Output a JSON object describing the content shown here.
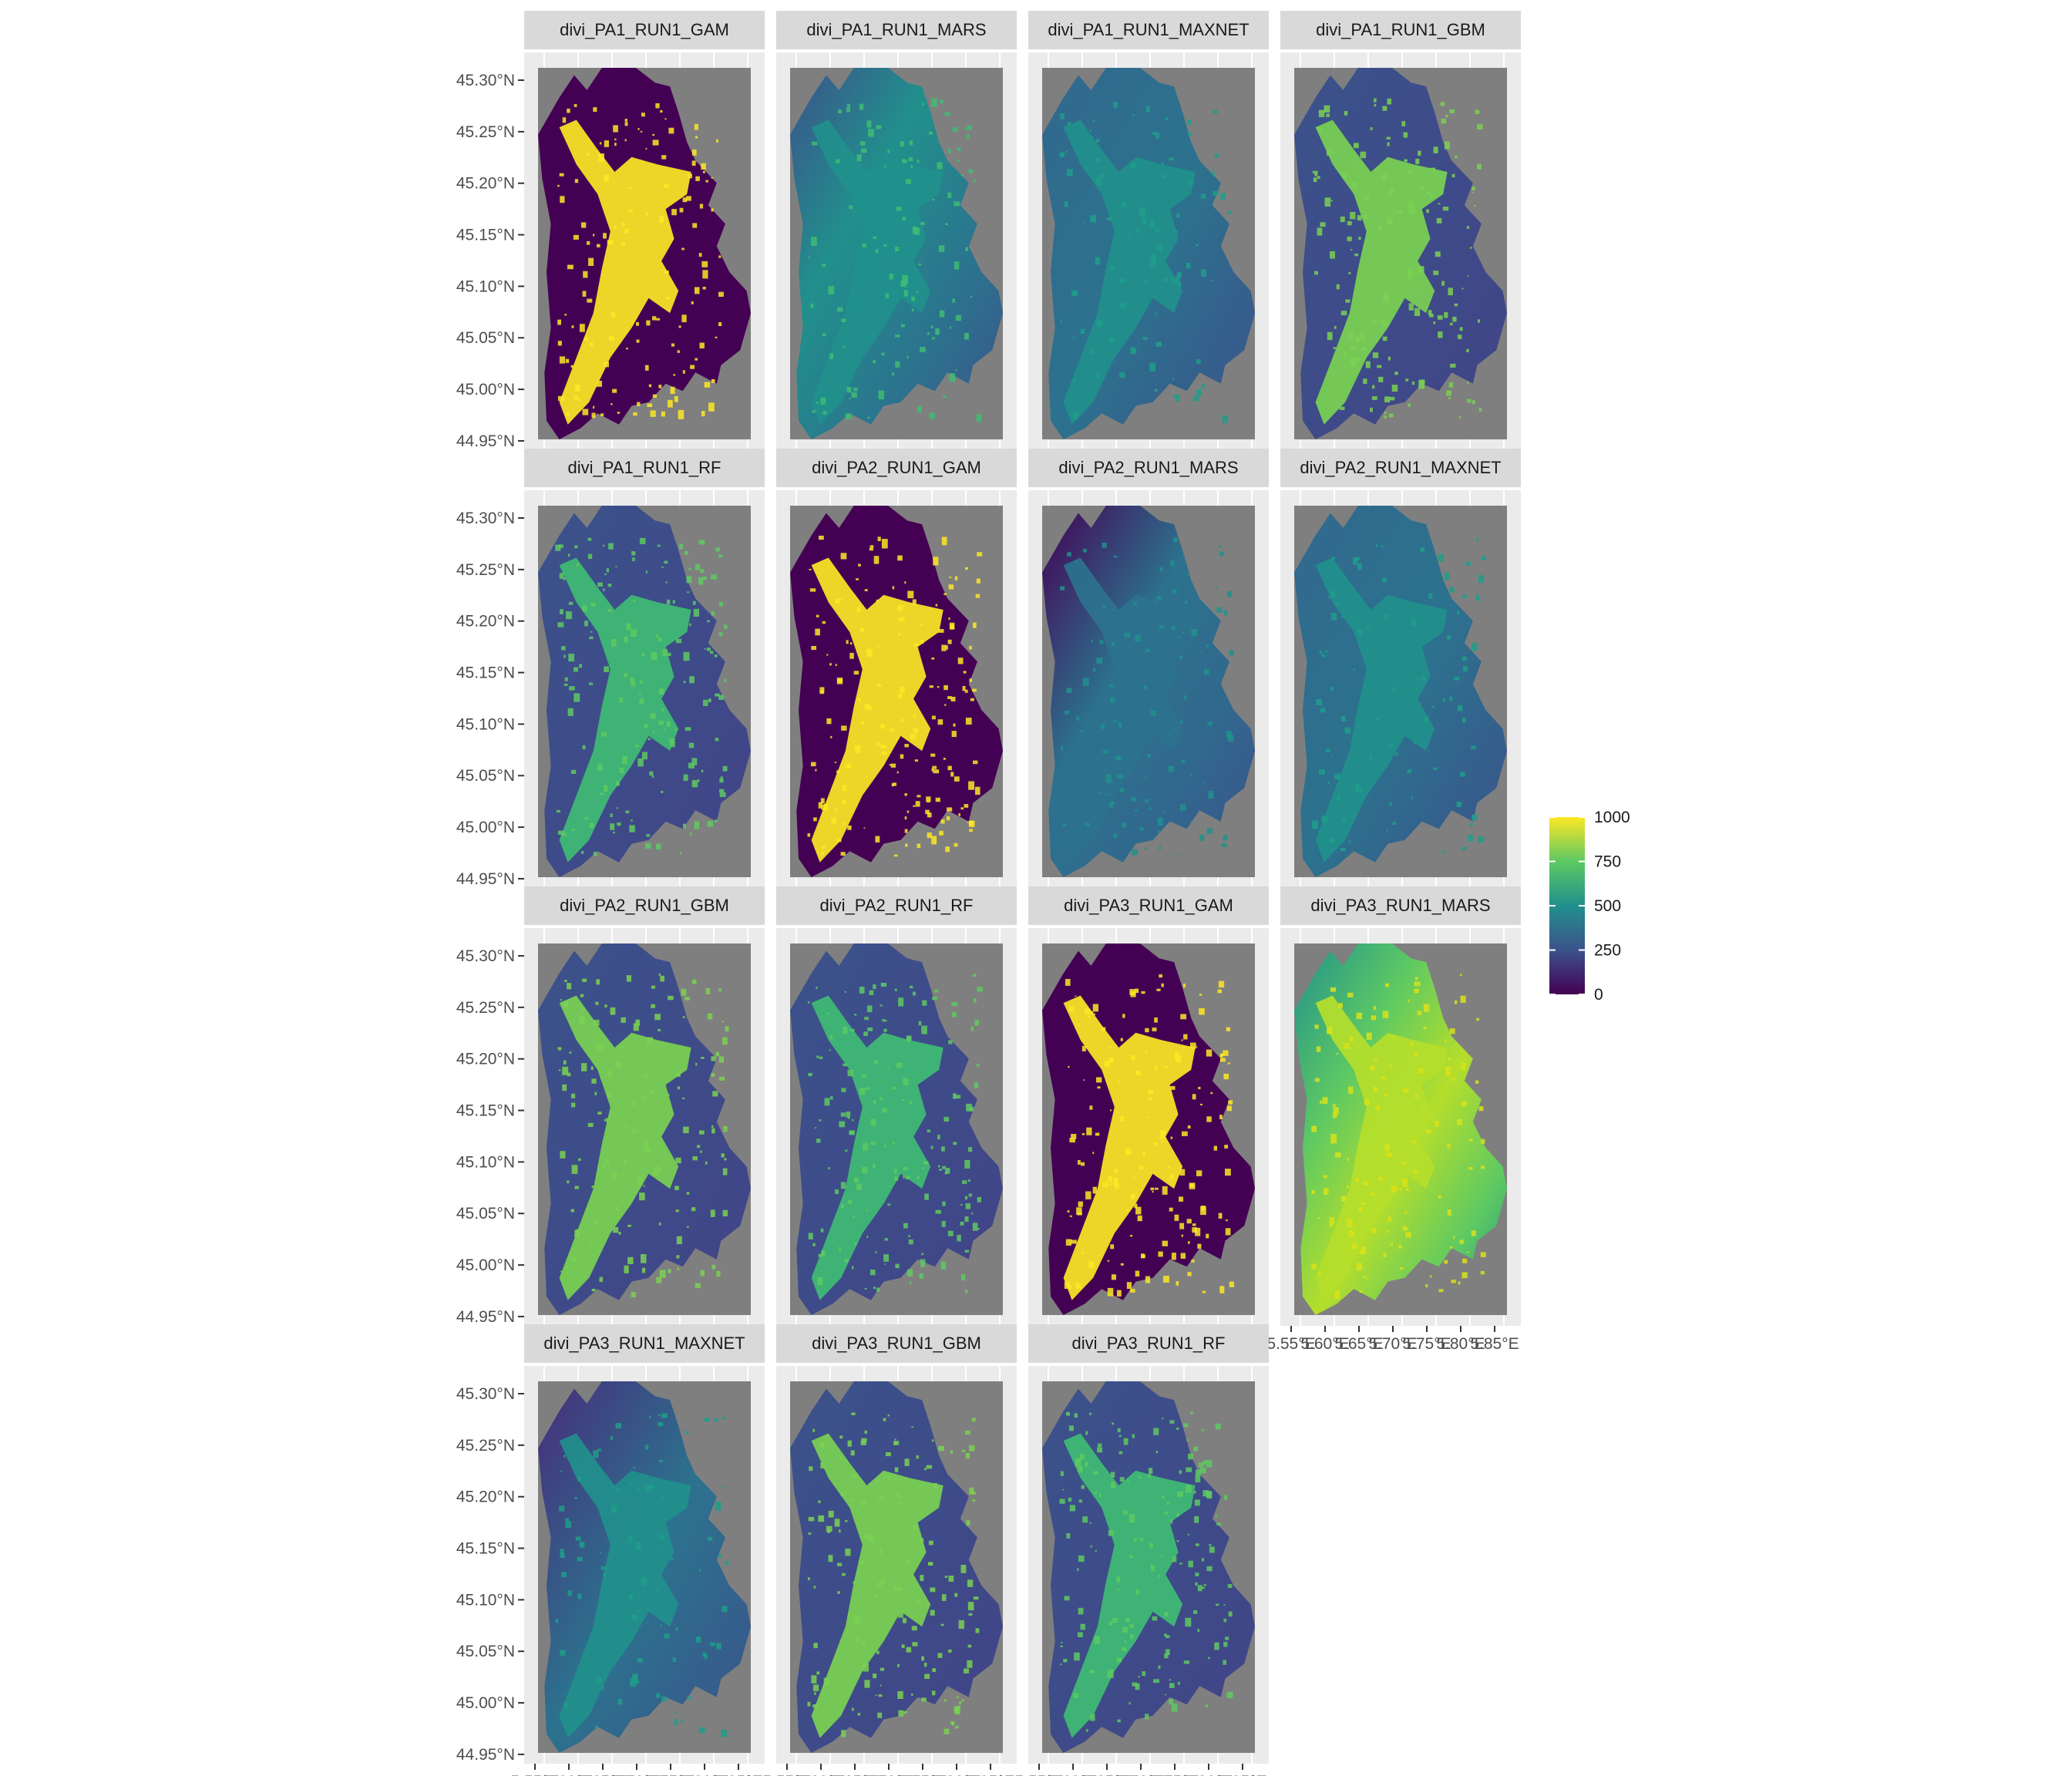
{
  "figure": {
    "colors": {
      "panel_background": "#ebebeb",
      "strip_background": "#d9d9d9",
      "raster_na": "#7f7f7f",
      "viridis": [
        "#440154",
        "#3b528b",
        "#21908c",
        "#5dc963",
        "#fde725"
      ]
    },
    "panels": [
      {
        "title": "divi_PA1_RUN1_GAM",
        "style": "binary-a",
        "mean_value": 500
      },
      {
        "title": "divi_PA1_RUN1_MARS",
        "style": "mars-mid",
        "mean_value": 300
      },
      {
        "title": "divi_PA1_RUN1_MAXNET",
        "style": "maxnet",
        "mean_value": 260
      },
      {
        "title": "divi_PA1_RUN1_GBM",
        "style": "gbm",
        "mean_value": 380
      },
      {
        "title": "divi_PA1_RUN1_RF",
        "style": "rf",
        "mean_value": 330
      },
      {
        "title": "divi_PA2_RUN1_GAM",
        "style": "binary-b",
        "mean_value": 520
      },
      {
        "title": "divi_PA2_RUN1_MARS",
        "style": "mars-low",
        "mean_value": 220
      },
      {
        "title": "divi_PA2_RUN1_MAXNET",
        "style": "maxnet",
        "mean_value": 250
      },
      {
        "title": "divi_PA2_RUN1_GBM",
        "style": "gbm",
        "mean_value": 400
      },
      {
        "title": "divi_PA2_RUN1_RF",
        "style": "rf",
        "mean_value": 340
      },
      {
        "title": "divi_PA3_RUN1_GAM",
        "style": "binary-c",
        "mean_value": 480
      },
      {
        "title": "divi_PA3_RUN1_MARS",
        "style": "mars-high",
        "mean_value": 650
      },
      {
        "title": "divi_PA3_RUN1_MAXNET",
        "style": "maxnet-dark",
        "mean_value": 240
      },
      {
        "title": "divi_PA3_RUN1_GBM",
        "style": "gbm",
        "mean_value": 390
      },
      {
        "title": "divi_PA3_RUN1_RF",
        "style": "rf",
        "mean_value": 320
      }
    ],
    "y_ticks": [
      "45.30°N",
      "45.25°N",
      "45.20°N",
      "45.15°N",
      "45.10°N",
      "45.05°N",
      "45.00°N",
      "44.95°N"
    ],
    "x_ticks": [
      "5.55°E",
      "5.60°E",
      "5.65°E",
      "5.70°E",
      "5.75°E",
      "5.80°E",
      "5.85°E"
    ],
    "legend": {
      "title": "",
      "labels": [
        "1000",
        "750",
        "500",
        "250",
        "0"
      ],
      "values": [
        1000,
        750,
        500,
        250,
        0
      ]
    }
  }
}
